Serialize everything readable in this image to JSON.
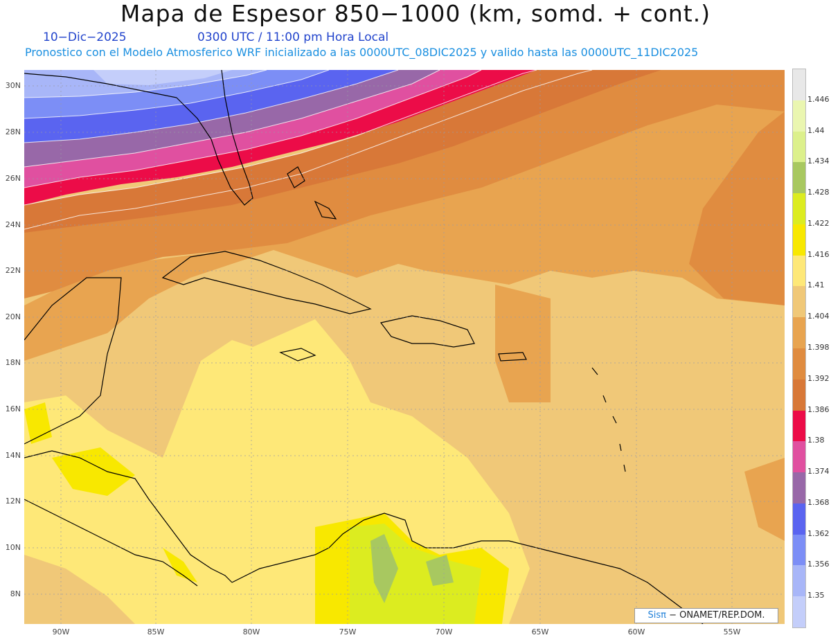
{
  "header": {
    "title": "Mapa de Espesor 850−1000 (km, somd. + cont.)",
    "date": "10−Dic−2025",
    "time": "0300 UTC / 11:00 pm Hora Local",
    "forecast": "Pronostico con el Modelo Atmosferico WRF inicializado a las 0000UTC_08DIC2025 y valido hasta las  0000UTC_11DIC2025"
  },
  "axes": {
    "lat_labels": [
      "30N",
      "28N",
      "26N",
      "24N",
      "22N",
      "20N",
      "18N",
      "16N",
      "14N",
      "12N",
      "10N",
      "8N"
    ],
    "lon_labels": [
      "90W",
      "85W",
      "80W",
      "75W",
      "70W",
      "65W",
      "60W",
      "55W"
    ]
  },
  "colorbar": {
    "levels": [
      "1.446",
      "1.44",
      "1.434",
      "1.428",
      "1.422",
      "1.416",
      "1.41",
      "1.404",
      "1.398",
      "1.392",
      "1.386",
      "1.38",
      "1.374",
      "1.368",
      "1.362",
      "1.356",
      "1.35"
    ],
    "colors": [
      "#e8e8e8",
      "#eaf6b0",
      "#dcf08c",
      "#a8c860",
      "#dcec20",
      "#f8e800",
      "#fee878",
      "#f0c878",
      "#e8a450",
      "#e08c40",
      "#d87838",
      "#ec0c48",
      "#e050a0",
      "#9868a8",
      "#5a64f0",
      "#7c8ef6",
      "#a8b6f8",
      "#c4cefa"
    ]
  },
  "credit": {
    "logo": "Sisπ",
    "text": " −  ONAMET/REP.DOM."
  }
}
